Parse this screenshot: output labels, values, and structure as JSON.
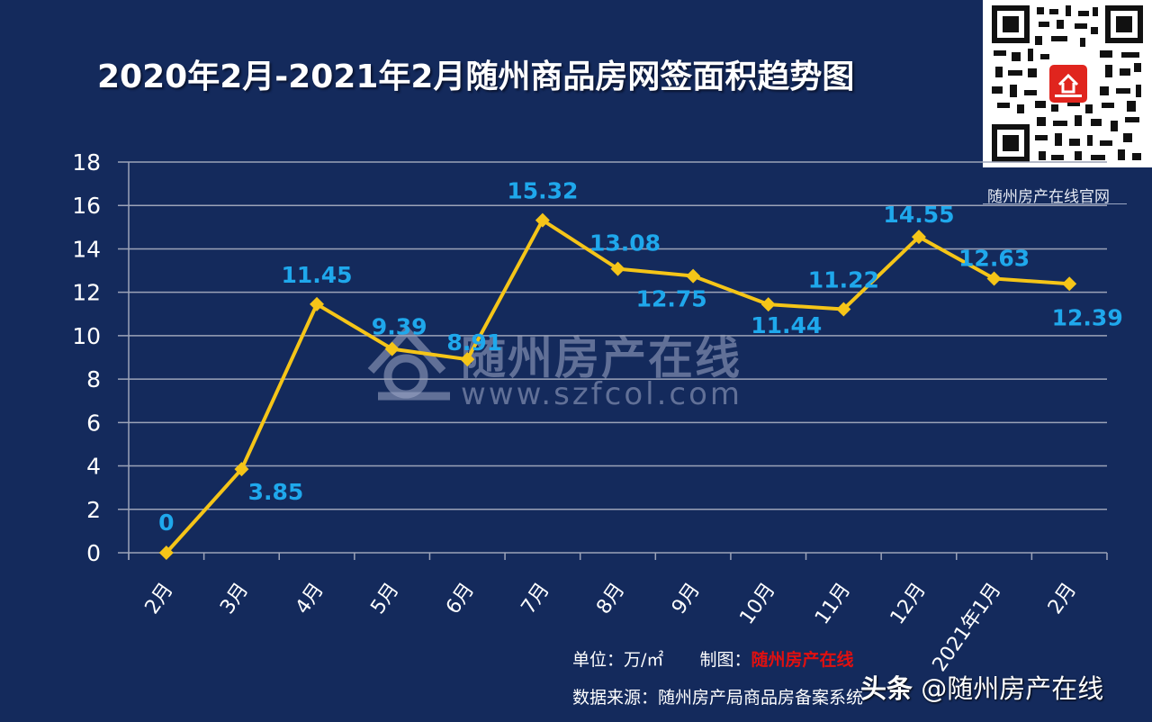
{
  "title": "2020年2月-2021年2月随州商品房网签面积趋势图",
  "qr": {
    "caption": "随州房产在线官网",
    "icon": "qr-code-icon"
  },
  "watermark": {
    "text": "随州房产在线",
    "url": "www.szfcol.com",
    "icon": "house-logo-icon"
  },
  "footer": {
    "unit_label": "单位：万/㎡",
    "maker_label": "制图：",
    "maker_value": "随州房产在线",
    "source": "数据来源：随州房产局商品房备案系统",
    "toutiao_prefix": "头条",
    "toutiao_handle": "@随州房产在线"
  },
  "colors": {
    "background": "#142a5c",
    "line": "#f5c518",
    "data_label": "#1fa8ec",
    "grid": "#9ca3b8",
    "axis_text": "#ffffff",
    "maker": "#e01010"
  },
  "chart_data": {
    "type": "line",
    "title": "2020年2月-2021年2月随州商品房网签面积趋势图",
    "xlabel": "",
    "ylabel": "",
    "unit": "万/㎡",
    "categories": [
      "2月",
      "3月",
      "4月",
      "5月",
      "6月",
      "7月",
      "8月",
      "9月",
      "10月",
      "11月",
      "12月",
      "2021年1月",
      "2月"
    ],
    "values": [
      0,
      3.85,
      11.45,
      9.39,
      8.91,
      15.32,
      13.08,
      12.75,
      11.44,
      11.22,
      14.55,
      12.63,
      12.39
    ],
    "labels": [
      "0",
      "3.85",
      "11.45",
      "9.39",
      "8.91",
      "15.32",
      "13.08",
      "12.75",
      "11.44",
      "11.22",
      "14.55",
      "12.63",
      "12.39"
    ],
    "ylim": [
      0,
      18
    ],
    "yticks": [
      "0",
      "2",
      "4",
      "6",
      "8",
      "10",
      "12",
      "14",
      "16",
      "18"
    ],
    "grid": true,
    "legend": "none",
    "series": [
      {
        "name": "网签面积",
        "values": [
          0,
          3.85,
          11.45,
          9.39,
          8.91,
          15.32,
          13.08,
          12.75,
          11.44,
          11.22,
          14.55,
          12.63,
          12.39
        ]
      }
    ]
  }
}
